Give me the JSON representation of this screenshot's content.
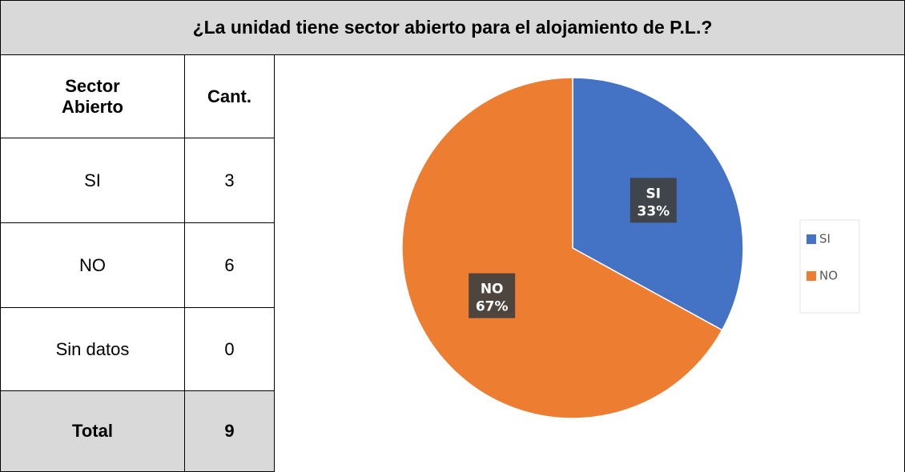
{
  "title": "¿La unidad tiene sector abierto para el alojamiento de P.L.?",
  "table": {
    "header": [
      "Sector Abierto",
      "Cant."
    ],
    "rows": [
      [
        "SI",
        3
      ],
      [
        "NO",
        6
      ],
      [
        "Sin datos",
        0
      ]
    ],
    "total": [
      "Total",
      9
    ]
  },
  "chart_data": {
    "type": "pie",
    "categories": [
      "SI",
      "NO"
    ],
    "values": [
      33,
      67
    ],
    "value_labels": [
      "33%",
      "67%"
    ],
    "colors": [
      "#4472c4",
      "#ed7d31"
    ],
    "legend": "right"
  }
}
